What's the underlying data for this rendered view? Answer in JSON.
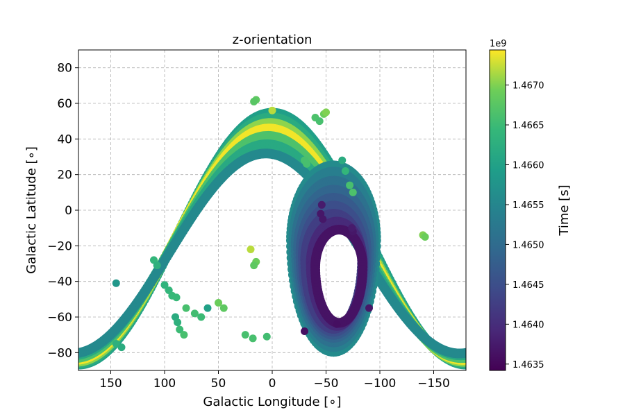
{
  "chart_data": {
    "type": "scatter",
    "title": "z-orientation",
    "xlabel": "Galactic Longitude [∘]",
    "ylabel": "Galactic Latitude [∘]",
    "xlim": [
      180,
      -180
    ],
    "ylim": [
      -90,
      90
    ],
    "x_ticks": [
      150,
      100,
      50,
      0,
      -50,
      -100,
      -150
    ],
    "x_tick_labels": [
      "150",
      "100",
      "50",
      "0",
      "−50",
      "−100",
      "−150"
    ],
    "y_ticks": [
      80,
      60,
      40,
      20,
      0,
      -20,
      -40,
      -60,
      -80
    ],
    "y_tick_labels": [
      "80",
      "60",
      "40",
      "20",
      "0",
      "−20",
      "−40",
      "−60",
      "−80"
    ],
    "grid": true,
    "colorbar": {
      "label": "Time [s]",
      "offset_label": "1e9",
      "colormap": "viridis",
      "range": [
        1.46342,
        1.46744
      ],
      "ticks": [
        1.4635,
        1.464,
        1.4645,
        1.465,
        1.4655,
        1.466,
        1.4665,
        1.467
      ],
      "tick_labels": [
        "1.4635",
        "1.4640",
        "1.4645",
        "1.4650",
        "1.4655",
        "1.4660",
        "1.4665",
        "1.4670"
      ]
    },
    "bands": [
      {
        "amp": 136,
        "ref": 90,
        "lat_offset": 0,
        "time": 1.46595
      },
      {
        "amp": 133,
        "ref": 89,
        "lat_offset": -2,
        "time": 1.4662
      },
      {
        "amp": 129,
        "ref": 88,
        "lat_offset": -4,
        "time": 1.46705
      },
      {
        "amp": 125,
        "ref": 87,
        "lat_offset": -6,
        "time": 1.4674
      },
      {
        "amp": 120,
        "ref": 86,
        "lat_offset": -9,
        "time": 1.46665
      },
      {
        "amp": 114,
        "ref": 85,
        "lat_offset": -12,
        "time": 1.46615
      },
      {
        "amp": 108,
        "ref": 84,
        "lat_offset": -16,
        "time": 1.46555
      }
    ],
    "loops": [
      {
        "cx": -57,
        "cy": -17,
        "rx": 72,
        "ry": 68,
        "time": 1.4656
      },
      {
        "cx": -57,
        "cy": -18,
        "rx": 68,
        "ry": 64,
        "time": 1.46535
      },
      {
        "cx": -57,
        "cy": -20,
        "rx": 64,
        "ry": 59,
        "time": 1.4651
      },
      {
        "cx": -57,
        "cy": -22,
        "rx": 60,
        "ry": 54,
        "time": 1.4649
      },
      {
        "cx": -57,
        "cy": -24,
        "rx": 56,
        "ry": 50,
        "time": 1.4647
      },
      {
        "cx": -57,
        "cy": -26,
        "rx": 52,
        "ry": 46,
        "time": 1.4645
      },
      {
        "cx": -57,
        "cy": -28,
        "rx": 48,
        "ry": 42,
        "time": 1.46425
      },
      {
        "cx": -60,
        "cy": -30,
        "rx": 44,
        "ry": 38,
        "time": 1.46395
      },
      {
        "cx": -62,
        "cy": -32,
        "rx": 40,
        "ry": 34,
        "time": 1.46365
      }
    ],
    "points": [
      {
        "x": -40,
        "y": 52,
        "time": 1.46665
      },
      {
        "x": -44,
        "y": 50,
        "time": 1.4666
      },
      {
        "x": 15,
        "y": 62,
        "time": 1.4668
      },
      {
        "x": 17,
        "y": 61,
        "time": 1.46675
      },
      {
        "x": 0,
        "y": 56,
        "time": 1.4672
      },
      {
        "x": -48,
        "y": 54,
        "time": 1.4669
      },
      {
        "x": -50,
        "y": 55,
        "time": 1.467
      },
      {
        "x": -30,
        "y": 28,
        "time": 1.4666
      },
      {
        "x": -32,
        "y": 26,
        "time": 1.4666
      },
      {
        "x": -65,
        "y": 28,
        "time": 1.4662
      },
      {
        "x": -68,
        "y": 22,
        "time": 1.4664
      },
      {
        "x": -72,
        "y": 14,
        "time": 1.4666
      },
      {
        "x": -75,
        "y": 10,
        "time": 1.46665
      },
      {
        "x": -140,
        "y": -14,
        "time": 1.467
      },
      {
        "x": -142,
        "y": -15,
        "time": 1.4669
      },
      {
        "x": 145,
        "y": -41,
        "time": 1.4658
      },
      {
        "x": 110,
        "y": -28,
        "time": 1.4664
      },
      {
        "x": 107,
        "y": -31,
        "time": 1.4663
      },
      {
        "x": 100,
        "y": -42,
        "time": 1.46635
      },
      {
        "x": 96,
        "y": -45,
        "time": 1.4664
      },
      {
        "x": 93,
        "y": -48,
        "time": 1.46645
      },
      {
        "x": 89,
        "y": -49,
        "time": 1.46645
      },
      {
        "x": 90,
        "y": -60,
        "time": 1.4662
      },
      {
        "x": 88,
        "y": -63,
        "time": 1.4663
      },
      {
        "x": 86,
        "y": -67,
        "time": 1.4665
      },
      {
        "x": 82,
        "y": -70,
        "time": 1.4666
      },
      {
        "x": 80,
        "y": -55,
        "time": 1.4666
      },
      {
        "x": 72,
        "y": -58,
        "time": 1.46655
      },
      {
        "x": 66,
        "y": -60,
        "time": 1.4665
      },
      {
        "x": 60,
        "y": -55,
        "time": 1.466
      },
      {
        "x": 50,
        "y": -52,
        "time": 1.4669
      },
      {
        "x": 45,
        "y": -55,
        "time": 1.4668
      },
      {
        "x": 15,
        "y": -29,
        "time": 1.4669
      },
      {
        "x": 17,
        "y": -31,
        "time": 1.4668
      },
      {
        "x": 20,
        "y": -22,
        "time": 1.4672
      },
      {
        "x": 25,
        "y": -70,
        "time": 1.4666
      },
      {
        "x": 18,
        "y": -72,
        "time": 1.4666
      },
      {
        "x": 5,
        "y": -71,
        "time": 1.46655
      },
      {
        "x": -45,
        "y": -2,
        "time": 1.4637
      },
      {
        "x": -47,
        "y": -5,
        "time": 1.4637
      },
      {
        "x": -46,
        "y": 3,
        "time": 1.46375
      },
      {
        "x": -75,
        "y": -12,
        "time": 1.4637
      },
      {
        "x": -74,
        "y": -10,
        "time": 1.46375
      },
      {
        "x": -30,
        "y": -68,
        "time": 1.4636
      },
      {
        "x": -60,
        "y": -64,
        "time": 1.4636
      },
      {
        "x": -90,
        "y": -55,
        "time": 1.4637
      },
      {
        "x": 145,
        "y": -75,
        "time": 1.4663
      },
      {
        "x": 140,
        "y": -77,
        "time": 1.4662
      }
    ]
  }
}
